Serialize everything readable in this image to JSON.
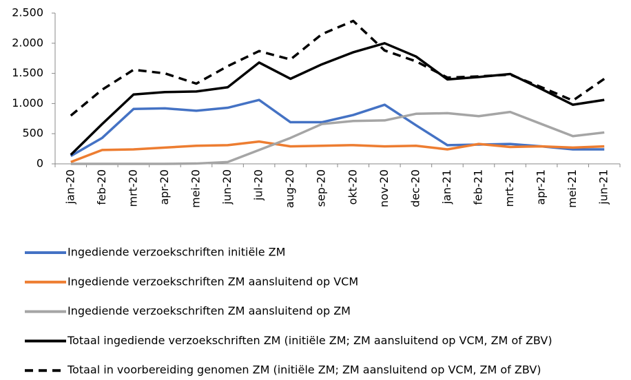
{
  "chart_data": {
    "type": "line",
    "categories": [
      "jan-20",
      "feb-20",
      "mrt-20",
      "apr-20",
      "mei-20",
      "jun-20",
      "jul-20",
      "aug-20",
      "sep-20",
      "okt-20",
      "nov-20",
      "dec-20",
      "jan-21",
      "feb-21",
      "mrt-21",
      "apr-21",
      "mei-21",
      "jun-21"
    ],
    "series": [
      {
        "name": "Ingediende verzoekschriften initiële ZM",
        "color": "#4472c4",
        "line_style": "solid",
        "values": [
          130,
          430,
          910,
          920,
          880,
          930,
          1060,
          690,
          690,
          810,
          980,
          640,
          310,
          320,
          330,
          290,
          240,
          240
        ]
      },
      {
        "name": "Ingediende verzoekschriften ZM aansluitend op VCM",
        "color": "#ed7d31",
        "line_style": "solid",
        "values": [
          30,
          230,
          240,
          270,
          300,
          310,
          370,
          290,
          300,
          310,
          290,
          300,
          240,
          330,
          280,
          290,
          270,
          290
        ]
      },
      {
        "name": "Ingediende verzoekschriften ZM aansluitend op ZM",
        "color": "#a5a5a5",
        "line_style": "solid",
        "values": [
          0,
          0,
          0,
          0,
          5,
          30,
          230,
          430,
          660,
          710,
          720,
          830,
          840,
          790,
          860,
          660,
          460,
          520
        ]
      },
      {
        "name": "Totaal ingediende verzoekschriften ZM (initiële ZM; ZM aansluitend op VCM, ZM of ZBV)",
        "color": "#000000",
        "line_style": "solid",
        "values": [
          150,
          660,
          1150,
          1190,
          1200,
          1270,
          1680,
          1410,
          1650,
          1850,
          2000,
          1780,
          1400,
          1440,
          1490,
          1240,
          980,
          1060
        ]
      },
      {
        "name": "Totaal in voorbereiding genomen ZM (initiële ZM; ZM aansluitend op VCM, ZM of ZBV)",
        "color": "#000000",
        "line_style": "dashed",
        "values": [
          800,
          1230,
          1560,
          1500,
          1330,
          1620,
          1870,
          1730,
          2150,
          2370,
          1880,
          1700,
          1430,
          1450,
          1480,
          1270,
          1050,
          1410
        ]
      }
    ],
    "ylim": [
      0,
      2500
    ],
    "yticks": [
      0,
      {
        "value": 500,
        "label": "500"
      },
      {
        "value": 1000,
        "label": "1.000"
      },
      {
        "value": 1500,
        "label": "1.500"
      },
      {
        "value": 2000,
        "label": "2.000"
      },
      {
        "value": 2500,
        "label": "2.500"
      }
    ],
    "grid": false,
    "legend": "bottom"
  }
}
